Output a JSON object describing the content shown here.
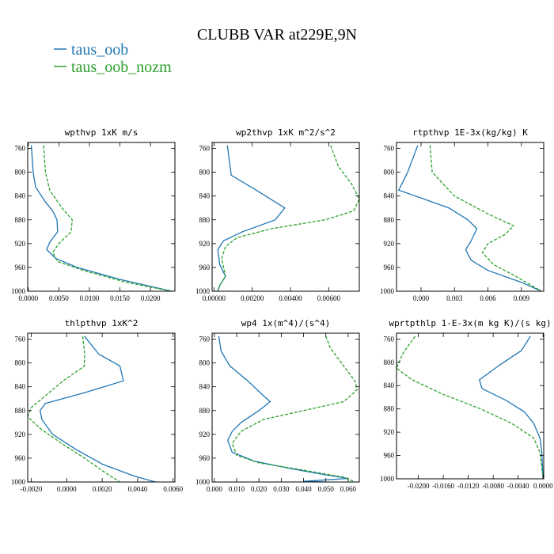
{
  "figure": {
    "title": "CLUBB VAR at229E,9N",
    "legend": [
      {
        "label": "taus_oob",
        "color": "#1f77b4",
        "dash": "solid"
      },
      {
        "label": "taus_oob_nozm",
        "color": "#2ca02c",
        "dash": "dashed"
      }
    ]
  },
  "chart_data": [
    {
      "type": "line",
      "title": "wpthvp  1xK m/s",
      "xlim": [
        -0.0001,
        0.024
      ],
      "ylim": [
        1000,
        750
      ],
      "xticks": [
        0.0,
        0.005,
        0.01,
        0.015,
        0.02
      ],
      "xticklabels": [
        "0.0000",
        "0.0050",
        "0.0100",
        "0.0150",
        "0.0200"
      ],
      "yticks": [
        760,
        800,
        840,
        880,
        920,
        960,
        1000
      ],
      "series": [
        {
          "name": "taus_oob",
          "points": [
            [
              0.0005,
              755
            ],
            [
              0.0008,
              800
            ],
            [
              0.0012,
              825
            ],
            [
              0.0028,
              850
            ],
            [
              0.004,
              865
            ],
            [
              0.0047,
              880
            ],
            [
              0.0048,
              900
            ],
            [
              0.0035,
              918
            ],
            [
              0.003,
              930
            ],
            [
              0.0045,
              945
            ],
            [
              0.008,
              960
            ],
            [
              0.015,
              980
            ],
            [
              0.0235,
              1000
            ]
          ]
        },
        {
          "name": "taus_oob_nozm",
          "points": [
            [
              0.0025,
              755
            ],
            [
              0.0028,
              800
            ],
            [
              0.0035,
              830
            ],
            [
              0.0055,
              860
            ],
            [
              0.0072,
              880
            ],
            [
              0.007,
              900
            ],
            [
              0.005,
              920
            ],
            [
              0.004,
              935
            ],
            [
              0.0048,
              950
            ],
            [
              0.009,
              965
            ],
            [
              0.016,
              985
            ],
            [
              0.0235,
              1000
            ]
          ]
        }
      ]
    },
    {
      "type": "line",
      "title": "wp2thvp  1xK m^2/s^2",
      "xlim": [
        -0.0001,
        0.0076
      ],
      "ylim": [
        1000,
        750
      ],
      "xticks": [
        0.0,
        0.002,
        0.004,
        0.006
      ],
      "xticklabels": [
        "0.00000",
        "0.00200",
        "0.00400",
        "0.00600"
      ],
      "yticks": [
        760,
        800,
        840,
        880,
        920,
        960,
        1000
      ],
      "series": [
        {
          "name": "taus_oob",
          "points": [
            [
              0.0007,
              755
            ],
            [
              0.0009,
              805
            ],
            [
              0.0022,
              830
            ],
            [
              0.0037,
              860
            ],
            [
              0.0032,
              880
            ],
            [
              0.0015,
              900
            ],
            [
              0.0005,
              915
            ],
            [
              0.0002,
              930
            ],
            [
              0.0003,
              955
            ],
            [
              0.0006,
              975
            ],
            [
              0.0003,
              990
            ],
            [
              0.0002,
              1000
            ]
          ]
        },
        {
          "name": "taus_oob_nozm",
          "points": [
            [
              0.0061,
              755
            ],
            [
              0.0065,
              790
            ],
            [
              0.0072,
              820
            ],
            [
              0.0076,
              845
            ],
            [
              0.0073,
              865
            ],
            [
              0.0058,
              880
            ],
            [
              0.003,
              895
            ],
            [
              0.0012,
              910
            ],
            [
              0.0006,
              925
            ],
            [
              0.0004,
              945
            ],
            [
              0.0006,
              975
            ],
            [
              0.0003,
              990
            ],
            [
              0.0002,
              1000
            ]
          ]
        }
      ]
    },
    {
      "type": "line",
      "title": "rtpthvp  1E-3x(kg/kg) K",
      "xlim": [
        -0.0022,
        0.011
      ],
      "ylim": [
        1000,
        750
      ],
      "xticks": [
        0.0,
        0.003,
        0.006,
        0.009
      ],
      "xticklabels": [
        "0.000",
        "0.003",
        "0.006",
        "0.009"
      ],
      "yticks": [
        760,
        800,
        840,
        880,
        920,
        960,
        1000
      ],
      "series": [
        {
          "name": "taus_oob",
          "points": [
            [
              -0.0003,
              755
            ],
            [
              -0.0012,
              800
            ],
            [
              -0.002,
              830
            ],
            [
              0.0025,
              860
            ],
            [
              0.0042,
              880
            ],
            [
              0.005,
              895
            ],
            [
              0.0045,
              915
            ],
            [
              0.004,
              930
            ],
            [
              0.0045,
              948
            ],
            [
              0.006,
              965
            ],
            [
              0.009,
              985
            ],
            [
              0.0108,
              1000
            ]
          ]
        },
        {
          "name": "taus_oob_nozm",
          "points": [
            [
              0.0008,
              755
            ],
            [
              0.001,
              800
            ],
            [
              0.003,
              840
            ],
            [
              0.006,
              870
            ],
            [
              0.0083,
              890
            ],
            [
              0.0075,
              905
            ],
            [
              0.006,
              920
            ],
            [
              0.0055,
              935
            ],
            [
              0.0065,
              955
            ],
            [
              0.0085,
              975
            ],
            [
              0.0108,
              1000
            ]
          ]
        }
      ]
    },
    {
      "type": "line",
      "title": "thlpthvp  1xK^2",
      "xlim": [
        -0.0022,
        0.0061
      ],
      "ylim": [
        1000,
        750
      ],
      "xticks": [
        -0.002,
        0.0,
        0.002,
        0.004,
        0.006
      ],
      "xticklabels": [
        "-0.0020",
        "0.0000",
        "0.0020",
        "0.0040",
        "0.0060"
      ],
      "yticks": [
        760,
        800,
        840,
        880,
        920,
        960,
        1000
      ],
      "series": [
        {
          "name": "taus_oob",
          "points": [
            [
              0.001,
              755
            ],
            [
              0.0018,
              785
            ],
            [
              0.003,
              805
            ],
            [
              0.0032,
              830
            ],
            [
              0.001,
              850
            ],
            [
              -0.0012,
              868
            ],
            [
              -0.0015,
              880
            ],
            [
              -0.0014,
              895
            ],
            [
              -0.0008,
              920
            ],
            [
              0.0005,
              945
            ],
            [
              0.002,
              970
            ],
            [
              0.0038,
              990
            ],
            [
              0.005,
              1000
            ]
          ]
        },
        {
          "name": "taus_oob_nozm",
          "points": [
            [
              0.0009,
              755
            ],
            [
              0.001,
              780
            ],
            [
              0.001,
              805
            ],
            [
              -0.0002,
              830
            ],
            [
              -0.0012,
              855
            ],
            [
              -0.002,
              875
            ],
            [
              -0.0022,
              890
            ],
            [
              -0.0015,
              910
            ],
            [
              -0.0003,
              935
            ],
            [
              0.001,
              960
            ],
            [
              0.0022,
              985
            ],
            [
              0.003,
              1000
            ]
          ]
        }
      ]
    },
    {
      "type": "line",
      "title": "wp4  1x(m^4)/(s^4)",
      "xlim": [
        -0.001,
        0.065
      ],
      "ylim": [
        1000,
        750
      ],
      "xticks": [
        0.0,
        0.01,
        0.02,
        0.03,
        0.04,
        0.05,
        0.06
      ],
      "xticklabels": [
        "0.000",
        "0.010",
        "0.020",
        "0.030",
        "0.040",
        "0.050",
        "0.060"
      ],
      "yticks": [
        760,
        800,
        840,
        880,
        920,
        960,
        1000
      ],
      "series": [
        {
          "name": "taus_oob",
          "points": [
            [
              0.002,
              755
            ],
            [
              0.003,
              780
            ],
            [
              0.007,
              805
            ],
            [
              0.015,
              830
            ],
            [
              0.022,
              855
            ],
            [
              0.025,
              865
            ],
            [
              0.02,
              880
            ],
            [
              0.012,
              900
            ],
            [
              0.008,
              915
            ],
            [
              0.006,
              930
            ],
            [
              0.008,
              950
            ],
            [
              0.018,
              965
            ],
            [
              0.035,
              978
            ],
            [
              0.05,
              988
            ],
            [
              0.06,
              994
            ],
            [
              0.04,
              999
            ],
            [
              0.05,
              1000
            ]
          ]
        },
        {
          "name": "taus_oob_nozm",
          "points": [
            [
              0.05,
              755
            ],
            [
              0.052,
              775
            ],
            [
              0.057,
              800
            ],
            [
              0.063,
              830
            ],
            [
              0.064,
              845
            ],
            [
              0.058,
              865
            ],
            [
              0.04,
              880
            ],
            [
              0.022,
              895
            ],
            [
              0.012,
              915
            ],
            [
              0.008,
              935
            ],
            [
              0.01,
              955
            ],
            [
              0.02,
              968
            ],
            [
              0.04,
              980
            ],
            [
              0.058,
              992
            ],
            [
              0.063,
              1000
            ]
          ]
        }
      ]
    },
    {
      "type": "line",
      "title": "wprtpthlp  1-E-3x(m kg K)/(s kg)",
      "xlim": [
        -0.0235,
        0.0001
      ],
      "ylim": [
        1000,
        750
      ],
      "xticks": [
        -0.02,
        -0.016,
        -0.012,
        -0.008,
        -0.004,
        0.0
      ],
      "xticklabels": [
        "-0.0200",
        "-0.0160",
        "-0.0120",
        "-0.0080",
        "-0.0040",
        "0.0000"
      ],
      "yticks": [
        760,
        800,
        840,
        880,
        920,
        960,
        1000
      ],
      "series": [
        {
          "name": "taus_oob",
          "points": [
            [
              -0.002,
              755
            ],
            [
              -0.0035,
              780
            ],
            [
              -0.007,
              805
            ],
            [
              -0.0102,
              830
            ],
            [
              -0.0098,
              845
            ],
            [
              -0.006,
              865
            ],
            [
              -0.003,
              885
            ],
            [
              -0.0015,
              905
            ],
            [
              -0.0005,
              930
            ],
            [
              -0.0002,
              955
            ],
            [
              0.0,
              1000
            ]
          ]
        },
        {
          "name": "taus_oob_nozm",
          "points": [
            [
              -0.0205,
              755
            ],
            [
              -0.0225,
              785
            ],
            [
              -0.0235,
              810
            ],
            [
              -0.021,
              830
            ],
            [
              -0.016,
              855
            ],
            [
              -0.01,
              880
            ],
            [
              -0.005,
              905
            ],
            [
              -0.0015,
              930
            ],
            [
              -0.0005,
              955
            ],
            [
              0.0,
              1000
            ]
          ]
        }
      ]
    }
  ]
}
